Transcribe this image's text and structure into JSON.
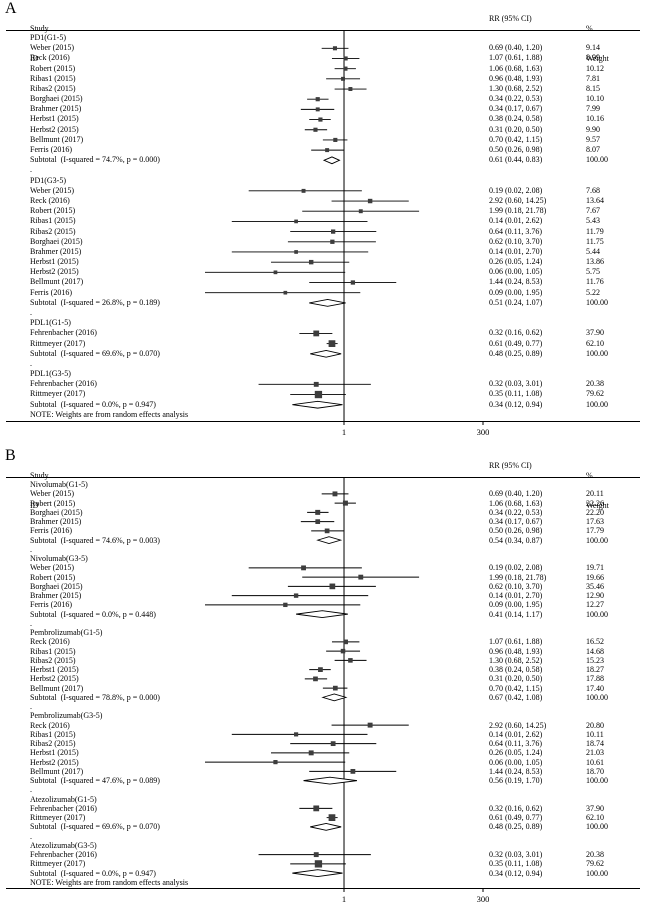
{
  "chart_data": {
    "type": "forest",
    "description": "Two-panel forest plot of RR (95% CI), random effects meta-analysis",
    "panels": [
      {
        "panel_label": "A",
        "col_headers": {
          "study_line1": "Study",
          "study_line2": "ID",
          "effect": "RR (95% CI)",
          "weight_line1": "%",
          "weight_line2": "Weight"
        },
        "axis": {
          "scale": "log",
          "xlim": [
            0.00333,
            300
          ],
          "ticks": [
            1,
            300
          ],
          "tick_labels": [
            "1",
            "300"
          ],
          "null_line": 1
        },
        "separator": ".",
        "note": "NOTE: Weights are from random effects analysis",
        "groups": [
          {
            "label": "PD1(G1-5)",
            "studies": [
              {
                "name": "Weber (2015)",
                "rr": 0.69,
                "ci_low": 0.4,
                "ci_high": 1.2,
                "weight": 9.14
              },
              {
                "name": "Reck (2016)",
                "rr": 1.07,
                "ci_low": 0.61,
                "ci_high": 1.88,
                "weight": 8.99
              },
              {
                "name": "Robert (2015)",
                "rr": 1.06,
                "ci_low": 0.68,
                "ci_high": 1.63,
                "weight": 10.12
              },
              {
                "name": "Ribas1 (2015)",
                "rr": 0.96,
                "ci_low": 0.48,
                "ci_high": 1.93,
                "weight": 7.81
              },
              {
                "name": "Ribas2 (2015)",
                "rr": 1.3,
                "ci_low": 0.68,
                "ci_high": 2.52,
                "weight": 8.15
              },
              {
                "name": "Borghaei (2015)",
                "rr": 0.34,
                "ci_low": 0.22,
                "ci_high": 0.53,
                "weight": 10.1
              },
              {
                "name": "Brahmer (2015)",
                "rr": 0.34,
                "ci_low": 0.17,
                "ci_high": 0.67,
                "weight": 7.99
              },
              {
                "name": "Herbst1 (2015)",
                "rr": 0.38,
                "ci_low": 0.24,
                "ci_high": 0.58,
                "weight": 10.16
              },
              {
                "name": "Herbst2 (2015)",
                "rr": 0.31,
                "ci_low": 0.2,
                "ci_high": 0.5,
                "weight": 9.9
              },
              {
                "name": "Bellmunt (2017)",
                "rr": 0.7,
                "ci_low": 0.42,
                "ci_high": 1.15,
                "weight": 9.57
              },
              {
                "name": "Ferris (2016)",
                "rr": 0.5,
                "ci_low": 0.26,
                "ci_high": 0.98,
                "weight": 8.07
              }
            ],
            "subtotal": {
              "name": "Subtotal  (I-squared = 74.7%, p = 0.000)",
              "rr": 0.61,
              "ci_low": 0.44,
              "ci_high": 0.83,
              "weight": 100.0
            }
          },
          {
            "label": "PD1(G3-5)",
            "studies": [
              {
                "name": "Weber (2015)",
                "rr": 0.19,
                "ci_low": 0.02,
                "ci_high": 2.08,
                "weight": 7.68
              },
              {
                "name": "Reck (2016)",
                "rr": 2.92,
                "ci_low": 0.6,
                "ci_high": 14.25,
                "weight": 13.64
              },
              {
                "name": "Robert (2015)",
                "rr": 1.99,
                "ci_low": 0.18,
                "ci_high": 21.78,
                "weight": 7.67
              },
              {
                "name": "Ribas1 (2015)",
                "rr": 0.14,
                "ci_low": 0.01,
                "ci_high": 2.62,
                "weight": 5.43
              },
              {
                "name": "Ribas2 (2015)",
                "rr": 0.64,
                "ci_low": 0.11,
                "ci_high": 3.76,
                "weight": 11.79
              },
              {
                "name": "Borghaei (2015)",
                "rr": 0.62,
                "ci_low": 0.1,
                "ci_high": 3.7,
                "weight": 11.75
              },
              {
                "name": "Brahmer (2015)",
                "rr": 0.14,
                "ci_low": 0.01,
                "ci_high": 2.7,
                "weight": 5.44
              },
              {
                "name": "Herbst1 (2015)",
                "rr": 0.26,
                "ci_low": 0.05,
                "ci_high": 1.24,
                "weight": 13.86
              },
              {
                "name": "Herbst2 (2015)",
                "rr": 0.06,
                "ci_low": 0.0,
                "ci_high": 1.05,
                "weight": 5.75
              },
              {
                "name": "Bellmunt (2017)",
                "rr": 1.44,
                "ci_low": 0.24,
                "ci_high": 8.53,
                "weight": 11.76
              },
              {
                "name": "Ferris (2016)",
                "rr": 0.09,
                "ci_low": 0.0,
                "ci_high": 1.95,
                "weight": 5.22
              }
            ],
            "subtotal": {
              "name": "Subtotal  (I-squared = 26.8%, p = 0.189)",
              "rr": 0.51,
              "ci_low": 0.24,
              "ci_high": 1.07,
              "weight": 100.0
            }
          },
          {
            "label": "PDL1(G1-5)",
            "studies": [
              {
                "name": "Fehrenbacher (2016)",
                "rr": 0.32,
                "ci_low": 0.16,
                "ci_high": 0.62,
                "weight": 37.9
              },
              {
                "name": "Rittmeyer (2017)",
                "rr": 0.61,
                "ci_low": 0.49,
                "ci_high": 0.77,
                "weight": 62.1
              }
            ],
            "subtotal": {
              "name": "Subtotal  (I-squared = 69.6%, p = 0.070)",
              "rr": 0.48,
              "ci_low": 0.25,
              "ci_high": 0.89,
              "weight": 100.0
            }
          },
          {
            "label": "PDL1(G3-5)",
            "studies": [
              {
                "name": "Fehrenbacher (2016)",
                "rr": 0.32,
                "ci_low": 0.03,
                "ci_high": 3.01,
                "weight": 20.38
              },
              {
                "name": "Rittmeyer (2017)",
                "rr": 0.35,
                "ci_low": 0.11,
                "ci_high": 1.08,
                "weight": 79.62
              }
            ],
            "subtotal": {
              "name": "Subtotal  (I-squared = 0.0%, p = 0.947)",
              "rr": 0.34,
              "ci_low": 0.12,
              "ci_high": 0.94,
              "weight": 100.0
            }
          }
        ]
      },
      {
        "panel_label": "B",
        "col_headers": {
          "study_line1": "Study",
          "study_line2": "ID",
          "effect": "RR (95% CI)",
          "weight_line1": "%",
          "weight_line2": "Weight"
        },
        "axis": {
          "scale": "log",
          "xlim": [
            0.00333,
            300
          ],
          "ticks": [
            1,
            300
          ],
          "tick_labels": [
            "1",
            "300"
          ],
          "null_line": 1
        },
        "separator": ".",
        "note": "NOTE: Weights are from random effects analysis",
        "groups": [
          {
            "label": "Nivolumab(G1-5)",
            "studies": [
              {
                "name": "Weber (2015)",
                "rr": 0.69,
                "ci_low": 0.4,
                "ci_high": 1.2,
                "weight": 20.11
              },
              {
                "name": "Robert (2015)",
                "rr": 1.06,
                "ci_low": 0.68,
                "ci_high": 1.63,
                "weight": 22.26
              },
              {
                "name": "Borghaei (2015)",
                "rr": 0.34,
                "ci_low": 0.22,
                "ci_high": 0.53,
                "weight": 22.2
              },
              {
                "name": "Brahmer (2015)",
                "rr": 0.34,
                "ci_low": 0.17,
                "ci_high": 0.67,
                "weight": 17.63
              },
              {
                "name": "Ferris (2016)",
                "rr": 0.5,
                "ci_low": 0.26,
                "ci_high": 0.98,
                "weight": 17.79
              }
            ],
            "subtotal": {
              "name": "Subtotal  (I-squared = 74.6%, p = 0.003)",
              "rr": 0.54,
              "ci_low": 0.34,
              "ci_high": 0.87,
              "weight": 100.0
            }
          },
          {
            "label": "Nivolumab(G3-5)",
            "studies": [
              {
                "name": "Weber (2015)",
                "rr": 0.19,
                "ci_low": 0.02,
                "ci_high": 2.08,
                "weight": 19.71
              },
              {
                "name": "Robert (2015)",
                "rr": 1.99,
                "ci_low": 0.18,
                "ci_high": 21.78,
                "weight": 19.66
              },
              {
                "name": "Borghaei (2015)",
                "rr": 0.62,
                "ci_low": 0.1,
                "ci_high": 3.7,
                "weight": 35.46
              },
              {
                "name": "Brahmer (2015)",
                "rr": 0.14,
                "ci_low": 0.01,
                "ci_high": 2.7,
                "weight": 12.9
              },
              {
                "name": "Ferris (2016)",
                "rr": 0.09,
                "ci_low": 0.0,
                "ci_high": 1.95,
                "weight": 12.27
              }
            ],
            "subtotal": {
              "name": "Subtotal  (I-squared = 0.0%, p = 0.448)",
              "rr": 0.41,
              "ci_low": 0.14,
              "ci_high": 1.17,
              "weight": 100.0
            }
          },
          {
            "label": "Pembrolizumab(G1-5)",
            "studies": [
              {
                "name": "Reck (2016)",
                "rr": 1.07,
                "ci_low": 0.61,
                "ci_high": 1.88,
                "weight": 16.52
              },
              {
                "name": "Ribas1 (2015)",
                "rr": 0.96,
                "ci_low": 0.48,
                "ci_high": 1.93,
                "weight": 14.68
              },
              {
                "name": "Ribas2 (2015)",
                "rr": 1.3,
                "ci_low": 0.68,
                "ci_high": 2.52,
                "weight": 15.23
              },
              {
                "name": "Herbst1 (2015)",
                "rr": 0.38,
                "ci_low": 0.24,
                "ci_high": 0.58,
                "weight": 18.27
              },
              {
                "name": "Herbst2 (2015)",
                "rr": 0.31,
                "ci_low": 0.2,
                "ci_high": 0.5,
                "weight": 17.88
              },
              {
                "name": "Bellmunt (2017)",
                "rr": 0.7,
                "ci_low": 0.42,
                "ci_high": 1.15,
                "weight": 17.4
              }
            ],
            "subtotal": {
              "name": "Subtotal  (I-squared = 78.8%, p = 0.000)",
              "rr": 0.67,
              "ci_low": 0.42,
              "ci_high": 1.08,
              "weight": 100.0
            }
          },
          {
            "label": "Pembrolizumab(G3-5)",
            "studies": [
              {
                "name": "Reck (2016)",
                "rr": 2.92,
                "ci_low": 0.6,
                "ci_high": 14.25,
                "weight": 20.8
              },
              {
                "name": "Ribas1 (2015)",
                "rr": 0.14,
                "ci_low": 0.01,
                "ci_high": 2.62,
                "weight": 10.11
              },
              {
                "name": "Ribas2 (2015)",
                "rr": 0.64,
                "ci_low": 0.11,
                "ci_high": 3.76,
                "weight": 18.74
              },
              {
                "name": "Herbst1 (2015)",
                "rr": 0.26,
                "ci_low": 0.05,
                "ci_high": 1.24,
                "weight": 21.03
              },
              {
                "name": "Herbst2 (2015)",
                "rr": 0.06,
                "ci_low": 0.0,
                "ci_high": 1.05,
                "weight": 10.61
              },
              {
                "name": "Bellmunt (2017)",
                "rr": 1.44,
                "ci_low": 0.24,
                "ci_high": 8.53,
                "weight": 18.7
              }
            ],
            "subtotal": {
              "name": "Subtotal  (I-squared = 47.6%, p = 0.089)",
              "rr": 0.56,
              "ci_low": 0.19,
              "ci_high": 1.7,
              "weight": 100.0
            }
          },
          {
            "label": "Atezolizumab(G1-5)",
            "studies": [
              {
                "name": "Fehrenbacher (2016)",
                "rr": 0.32,
                "ci_low": 0.16,
                "ci_high": 0.62,
                "weight": 37.9
              },
              {
                "name": "Rittmeyer (2017)",
                "rr": 0.61,
                "ci_low": 0.49,
                "ci_high": 0.77,
                "weight": 62.1
              }
            ],
            "subtotal": {
              "name": "Subtotal  (I-squared = 69.6%, p = 0.070)",
              "rr": 0.48,
              "ci_low": 0.25,
              "ci_high": 0.89,
              "weight": 100.0
            }
          },
          {
            "label": "Atezolizumab(G3-5)",
            "studies": [
              {
                "name": "Fehrenbacher (2016)",
                "rr": 0.32,
                "ci_low": 0.03,
                "ci_high": 3.01,
                "weight": 20.38
              },
              {
                "name": "Rittmeyer (2017)",
                "rr": 0.35,
                "ci_low": 0.11,
                "ci_high": 1.08,
                "weight": 79.62
              }
            ],
            "subtotal": {
              "name": "Subtotal  (I-squared = 0.0%, p = 0.947)",
              "rr": 0.34,
              "ci_low": 0.12,
              "ci_high": 0.94,
              "weight": 100.0
            }
          }
        ]
      }
    ]
  }
}
